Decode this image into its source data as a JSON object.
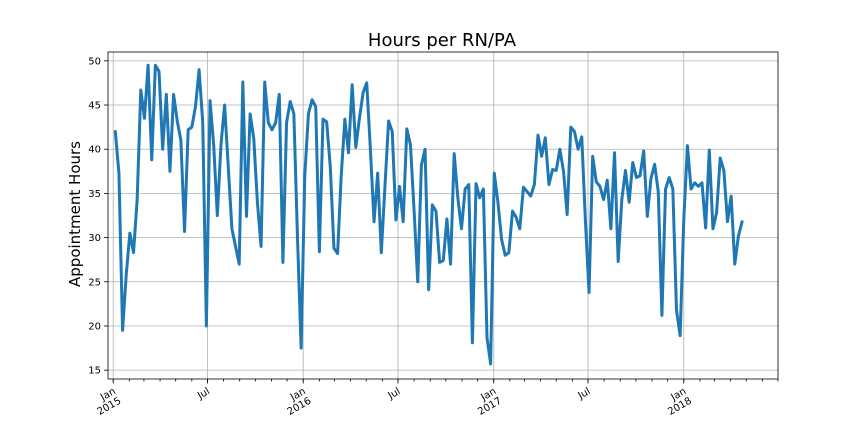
{
  "chart_data": {
    "type": "line",
    "title": "Hours per RN/PA",
    "xlabel": "",
    "ylabel": "Appointment Hours",
    "ylim": [
      14,
      51
    ],
    "xlim": [
      "2014-12-22",
      "2018-07-01"
    ],
    "grid": true,
    "legend": "none",
    "colors": {
      "series": "#1f77b4",
      "grid": "#b0b0b0"
    },
    "y_ticks": [
      15,
      20,
      25,
      30,
      35,
      40,
      45,
      50
    ],
    "x_ticks": [
      {
        "date": "2015-01-01",
        "line1": "Jan",
        "line2": "2015"
      },
      {
        "date": "2015-07-01",
        "line1": "Jul",
        "line2": ""
      },
      {
        "date": "2016-01-01",
        "line1": "Jan",
        "line2": "2016"
      },
      {
        "date": "2016-07-01",
        "line1": "Jul",
        "line2": ""
      },
      {
        "date": "2017-01-01",
        "line1": "Jan",
        "line2": "2017"
      },
      {
        "date": "2017-07-01",
        "line1": "Jul",
        "line2": ""
      },
      {
        "date": "2018-01-01",
        "line1": "Jan",
        "line2": "2018"
      }
    ],
    "series": [
      {
        "name": "",
        "points": [
          [
            "2015-01-05",
            42.0
          ],
          [
            "2015-01-12",
            37.3
          ],
          [
            "2015-01-19",
            19.5
          ],
          [
            "2015-01-26",
            25.8
          ],
          [
            "2015-02-02",
            30.5
          ],
          [
            "2015-02-09",
            28.3
          ],
          [
            "2015-02-16",
            34.3
          ],
          [
            "2015-02-23",
            46.7
          ],
          [
            "2015-03-02",
            43.5
          ],
          [
            "2015-03-09",
            49.5
          ],
          [
            "2015-03-16",
            38.8
          ],
          [
            "2015-03-23",
            49.5
          ],
          [
            "2015-03-30",
            48.8
          ],
          [
            "2015-04-06",
            40.0
          ],
          [
            "2015-04-13",
            46.2
          ],
          [
            "2015-04-20",
            37.5
          ],
          [
            "2015-04-27",
            46.2
          ],
          [
            "2015-05-04",
            43.2
          ],
          [
            "2015-05-11",
            41.0
          ],
          [
            "2015-05-18",
            30.7
          ],
          [
            "2015-05-25",
            42.2
          ],
          [
            "2015-06-01",
            42.5
          ],
          [
            "2015-06-08",
            44.8
          ],
          [
            "2015-06-15",
            49.0
          ],
          [
            "2015-06-22",
            43.0
          ],
          [
            "2015-06-29",
            20.0
          ],
          [
            "2015-07-06",
            45.5
          ],
          [
            "2015-07-13",
            40.5
          ],
          [
            "2015-07-20",
            32.5
          ],
          [
            "2015-07-27",
            40.5
          ],
          [
            "2015-08-03",
            45.0
          ],
          [
            "2015-08-10",
            38.0
          ],
          [
            "2015-08-17",
            31.0
          ],
          [
            "2015-08-24",
            29.0
          ],
          [
            "2015-08-31",
            27.0
          ],
          [
            "2015-09-07",
            47.6
          ],
          [
            "2015-09-14",
            32.4
          ],
          [
            "2015-09-21",
            44.0
          ],
          [
            "2015-09-28",
            41.2
          ],
          [
            "2015-10-05",
            34.0
          ],
          [
            "2015-10-12",
            29.0
          ],
          [
            "2015-10-19",
            47.6
          ],
          [
            "2015-10-26",
            43.0
          ],
          [
            "2015-11-02",
            42.2
          ],
          [
            "2015-11-09",
            43.0
          ],
          [
            "2015-11-16",
            46.2
          ],
          [
            "2015-11-23",
            27.2
          ],
          [
            "2015-11-30",
            43.0
          ],
          [
            "2015-12-07",
            45.4
          ],
          [
            "2015-12-14",
            44.0
          ],
          [
            "2015-12-21",
            30.0
          ],
          [
            "2015-12-28",
            17.5
          ],
          [
            "2016-01-04",
            37.0
          ],
          [
            "2016-01-11",
            44.0
          ],
          [
            "2016-01-18",
            45.6
          ],
          [
            "2016-01-25",
            44.8
          ],
          [
            "2016-02-01",
            28.4
          ],
          [
            "2016-02-08",
            43.4
          ],
          [
            "2016-02-15",
            43.1
          ],
          [
            "2016-02-22",
            38.0
          ],
          [
            "2016-02-29",
            28.8
          ],
          [
            "2016-03-07",
            28.2
          ],
          [
            "2016-03-14",
            37.0
          ],
          [
            "2016-03-21",
            43.4
          ],
          [
            "2016-03-28",
            39.6
          ],
          [
            "2016-04-04",
            47.3
          ],
          [
            "2016-04-11",
            40.2
          ],
          [
            "2016-04-18",
            43.5
          ],
          [
            "2016-04-25",
            46.4
          ],
          [
            "2016-05-02",
            47.5
          ],
          [
            "2016-05-09",
            40.0
          ],
          [
            "2016-05-16",
            31.8
          ],
          [
            "2016-05-23",
            37.3
          ],
          [
            "2016-05-30",
            28.3
          ],
          [
            "2016-06-06",
            35.8
          ],
          [
            "2016-06-13",
            43.2
          ],
          [
            "2016-06-20",
            42.0
          ],
          [
            "2016-06-27",
            32.0
          ],
          [
            "2016-07-04",
            35.8
          ],
          [
            "2016-07-11",
            31.8
          ],
          [
            "2016-07-18",
            42.3
          ],
          [
            "2016-07-25",
            40.5
          ],
          [
            "2016-08-01",
            33.0
          ],
          [
            "2016-08-08",
            25.0
          ],
          [
            "2016-08-15",
            38.2
          ],
          [
            "2016-08-22",
            40.0
          ],
          [
            "2016-08-29",
            24.1
          ],
          [
            "2016-09-05",
            33.7
          ],
          [
            "2016-09-12",
            33.0
          ],
          [
            "2016-09-19",
            27.2
          ],
          [
            "2016-09-26",
            27.4
          ],
          [
            "2016-10-03",
            32.1
          ],
          [
            "2016-10-10",
            27.0
          ],
          [
            "2016-10-17",
            39.5
          ],
          [
            "2016-10-24",
            34.5
          ],
          [
            "2016-10-31",
            31.0
          ],
          [
            "2016-11-07",
            35.5
          ],
          [
            "2016-11-14",
            36.0
          ],
          [
            "2016-11-21",
            18.1
          ],
          [
            "2016-11-28",
            36.1
          ],
          [
            "2016-12-05",
            34.5
          ],
          [
            "2016-12-12",
            35.5
          ],
          [
            "2016-12-19",
            18.7
          ],
          [
            "2016-12-26",
            15.7
          ],
          [
            "2017-01-02",
            37.3
          ],
          [
            "2017-01-09",
            34.0
          ],
          [
            "2017-01-16",
            29.8
          ],
          [
            "2017-01-23",
            28.0
          ],
          [
            "2017-01-30",
            28.3
          ],
          [
            "2017-02-06",
            33.0
          ],
          [
            "2017-02-13",
            32.3
          ],
          [
            "2017-02-20",
            31.0
          ],
          [
            "2017-02-27",
            35.7
          ],
          [
            "2017-03-06",
            35.2
          ],
          [
            "2017-03-13",
            34.7
          ],
          [
            "2017-03-20",
            36.0
          ],
          [
            "2017-03-27",
            41.6
          ],
          [
            "2017-04-03",
            39.2
          ],
          [
            "2017-04-10",
            41.3
          ],
          [
            "2017-04-17",
            36.0
          ],
          [
            "2017-04-24",
            37.7
          ],
          [
            "2017-05-01",
            37.6
          ],
          [
            "2017-05-08",
            40.0
          ],
          [
            "2017-05-15",
            37.5
          ],
          [
            "2017-05-22",
            32.6
          ],
          [
            "2017-05-29",
            42.5
          ],
          [
            "2017-06-05",
            42.0
          ],
          [
            "2017-06-12",
            40.0
          ],
          [
            "2017-06-19",
            41.4
          ],
          [
            "2017-06-26",
            32.0
          ],
          [
            "2017-07-03",
            23.8
          ],
          [
            "2017-07-10",
            39.2
          ],
          [
            "2017-07-17",
            36.3
          ],
          [
            "2017-07-24",
            35.8
          ],
          [
            "2017-07-31",
            34.3
          ],
          [
            "2017-08-07",
            36.5
          ],
          [
            "2017-08-14",
            31.0
          ],
          [
            "2017-08-21",
            39.6
          ],
          [
            "2017-08-28",
            27.3
          ],
          [
            "2017-09-04",
            34.3
          ],
          [
            "2017-09-11",
            37.6
          ],
          [
            "2017-09-18",
            34.0
          ],
          [
            "2017-09-25",
            38.5
          ],
          [
            "2017-10-02",
            36.8
          ],
          [
            "2017-10-09",
            37.0
          ],
          [
            "2017-10-16",
            39.8
          ],
          [
            "2017-10-23",
            32.4
          ],
          [
            "2017-10-30",
            36.7
          ],
          [
            "2017-11-06",
            38.3
          ],
          [
            "2017-11-13",
            35.2
          ],
          [
            "2017-11-20",
            21.2
          ],
          [
            "2017-11-27",
            35.5
          ],
          [
            "2017-12-04",
            36.8
          ],
          [
            "2017-12-11",
            35.5
          ],
          [
            "2017-12-18",
            21.8
          ],
          [
            "2017-12-25",
            18.9
          ],
          [
            "2018-01-01",
            32.0
          ],
          [
            "2018-01-08",
            40.4
          ],
          [
            "2018-01-15",
            35.5
          ],
          [
            "2018-01-22",
            36.2
          ],
          [
            "2018-01-29",
            35.8
          ],
          [
            "2018-02-05",
            36.2
          ],
          [
            "2018-02-12",
            31.1
          ],
          [
            "2018-02-19",
            39.9
          ],
          [
            "2018-02-26",
            31.0
          ],
          [
            "2018-03-05",
            32.8
          ],
          [
            "2018-03-12",
            39.0
          ],
          [
            "2018-03-19",
            37.6
          ],
          [
            "2018-03-26",
            31.8
          ],
          [
            "2018-04-02",
            34.7
          ],
          [
            "2018-04-09",
            27.0
          ],
          [
            "2018-04-16",
            30.2
          ],
          [
            "2018-04-23",
            31.8
          ]
        ]
      }
    ]
  }
}
